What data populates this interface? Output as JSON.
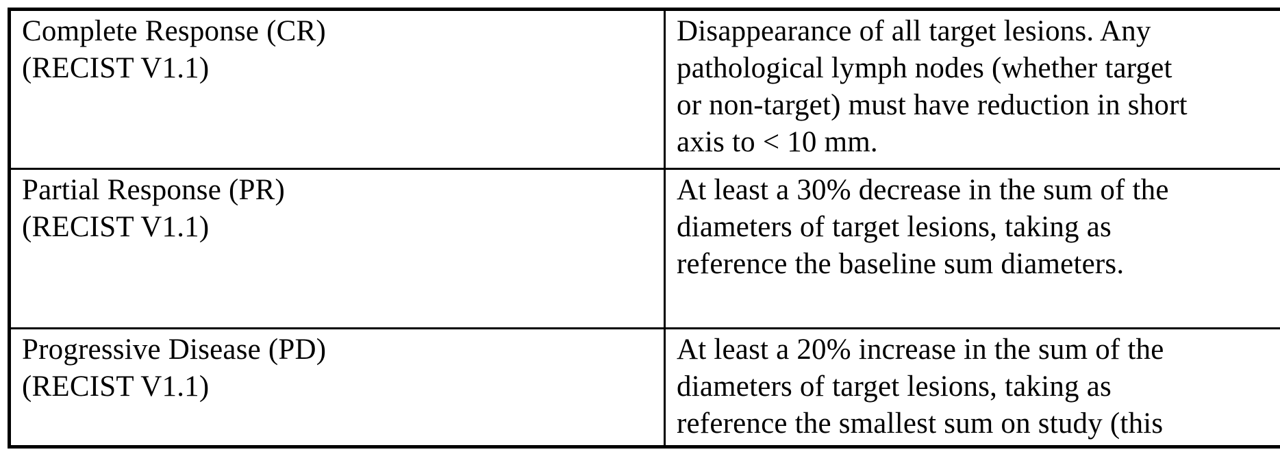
{
  "table": {
    "rows": [
      {
        "term": "Complete Response (CR)\n(RECIST V1.1)",
        "definition": "Disappearance of all target lesions. Any\npathological lymph nodes (whether target\nor non-target) must have reduction in short\naxis to < 10 mm."
      },
      {
        "term": "Partial Response (PR)\n(RECIST V1.1)",
        "definition": "At least a 30% decrease in the sum of the\ndiameters of target lesions, taking as\nreference the baseline sum diameters."
      },
      {
        "term": "Progressive Disease (PD)\n(RECIST V1.1)",
        "definition": "At least a 20% increase in the sum of the\ndiameters of target lesions, taking as\nreference the smallest sum on study (this"
      }
    ],
    "colors": {
      "border": "#000000",
      "text": "#000000",
      "background": "#ffffff"
    }
  }
}
